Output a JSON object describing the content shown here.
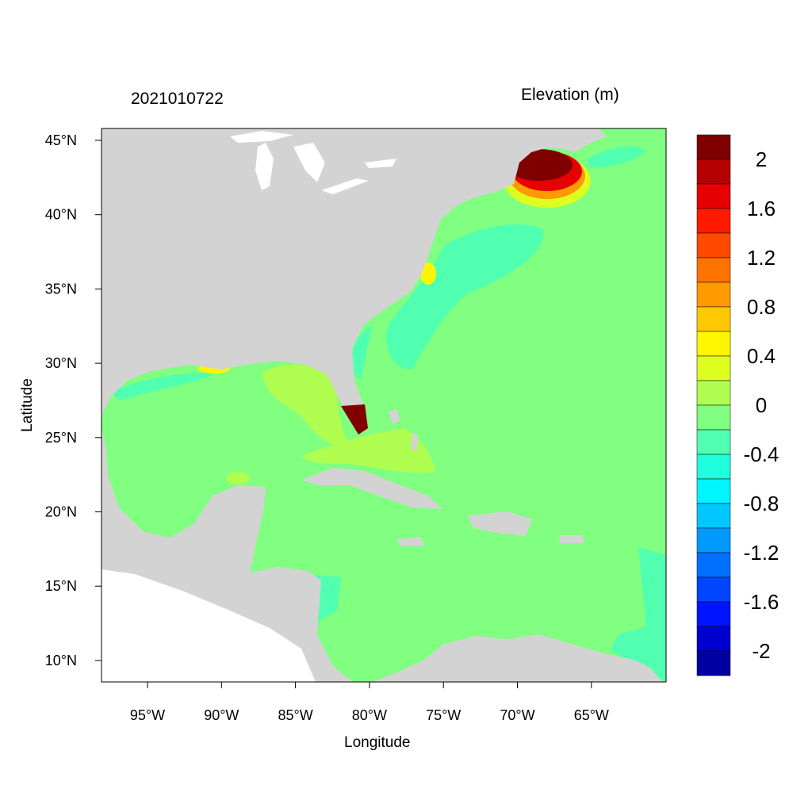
{
  "header": {
    "timestamp": "2021010722",
    "variable": "Elevation (m)"
  },
  "axes": {
    "xlabel": "Longitude",
    "ylabel": "Latitude",
    "xticks": [
      "95°W",
      "90°W",
      "85°W",
      "80°W",
      "75°W",
      "70°W",
      "65°W"
    ],
    "yticks": [
      "45°N",
      "40°N",
      "35°N",
      "30°N",
      "25°N",
      "20°N",
      "15°N",
      "10°N"
    ]
  },
  "map": {
    "lon_range": [
      "98°W",
      "60°W"
    ],
    "lat_range": [
      "8.5°N",
      "45.8°N"
    ],
    "land_color": "#d3d3d3",
    "no_data_color": "#ffffff"
  },
  "colorbar": {
    "labels": [
      "2",
      "1.6",
      "1.2",
      "0.8",
      "0.4",
      "0",
      "-0.4",
      "-0.8",
      "-1.2",
      "-1.6",
      "-2"
    ],
    "levels": [
      2.0,
      1.8,
      1.6,
      1.4,
      1.2,
      1.0,
      0.8,
      0.6,
      0.4,
      0.2,
      0.0,
      -0.2,
      -0.4,
      -0.6,
      -0.8,
      -1.0,
      -1.2,
      -1.4,
      -1.6,
      -1.8,
      -2.0
    ],
    "colors": [
      "#800000",
      "#b40000",
      "#e60000",
      "#ff1a00",
      "#ff4a00",
      "#ff7300",
      "#ff9a00",
      "#ffc800",
      "#fff500",
      "#dcff20",
      "#b0ff50",
      "#80ff80",
      "#50ffb0",
      "#20ffdc",
      "#00f5ff",
      "#00c8ff",
      "#009aff",
      "#0070ff",
      "#0045ff",
      "#0015ff",
      "#0000d0",
      "#0000a0"
    ]
  }
}
